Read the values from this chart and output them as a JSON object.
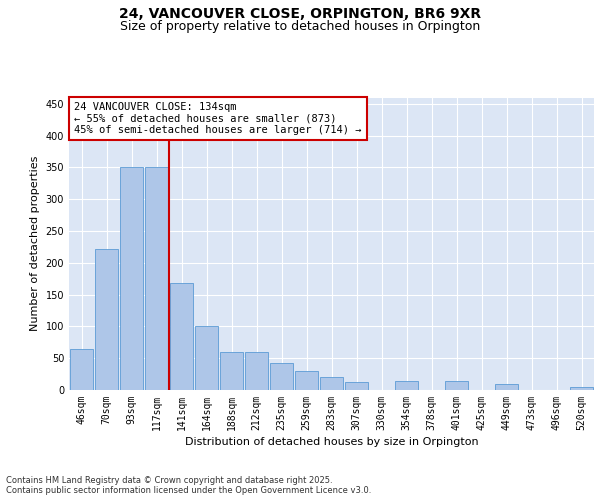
{
  "title": "24, VANCOUVER CLOSE, ORPINGTON, BR6 9XR",
  "subtitle": "Size of property relative to detached houses in Orpington",
  "xlabel": "Distribution of detached houses by size in Orpington",
  "ylabel": "Number of detached properties",
  "categories": [
    "46sqm",
    "70sqm",
    "93sqm",
    "117sqm",
    "141sqm",
    "164sqm",
    "188sqm",
    "212sqm",
    "235sqm",
    "259sqm",
    "283sqm",
    "307sqm",
    "330sqm",
    "354sqm",
    "378sqm",
    "401sqm",
    "425sqm",
    "449sqm",
    "473sqm",
    "496sqm",
    "520sqm"
  ],
  "values": [
    65,
    222,
    350,
    350,
    168,
    100,
    60,
    60,
    42,
    30,
    20,
    12,
    0,
    14,
    0,
    14,
    0,
    10,
    0,
    0,
    5
  ],
  "bar_color": "#aec6e8",
  "bar_edge_color": "#5b9bd5",
  "bg_color": "#dce6f5",
  "grid_color": "#ffffff",
  "vline_color": "#cc0000",
  "annotation_text": "24 VANCOUVER CLOSE: 134sqm\n← 55% of detached houses are smaller (873)\n45% of semi-detached houses are larger (714) →",
  "annotation_box_color": "#ffffff",
  "annotation_box_edge": "#cc0000",
  "ylim": [
    0,
    460
  ],
  "yticks": [
    0,
    50,
    100,
    150,
    200,
    250,
    300,
    350,
    400,
    450
  ],
  "footer": "Contains HM Land Registry data © Crown copyright and database right 2025.\nContains public sector information licensed under the Open Government Licence v3.0.",
  "title_fontsize": 10,
  "subtitle_fontsize": 9,
  "axis_label_fontsize": 8,
  "tick_fontsize": 7,
  "annotation_fontsize": 7.5,
  "footer_fontsize": 6
}
